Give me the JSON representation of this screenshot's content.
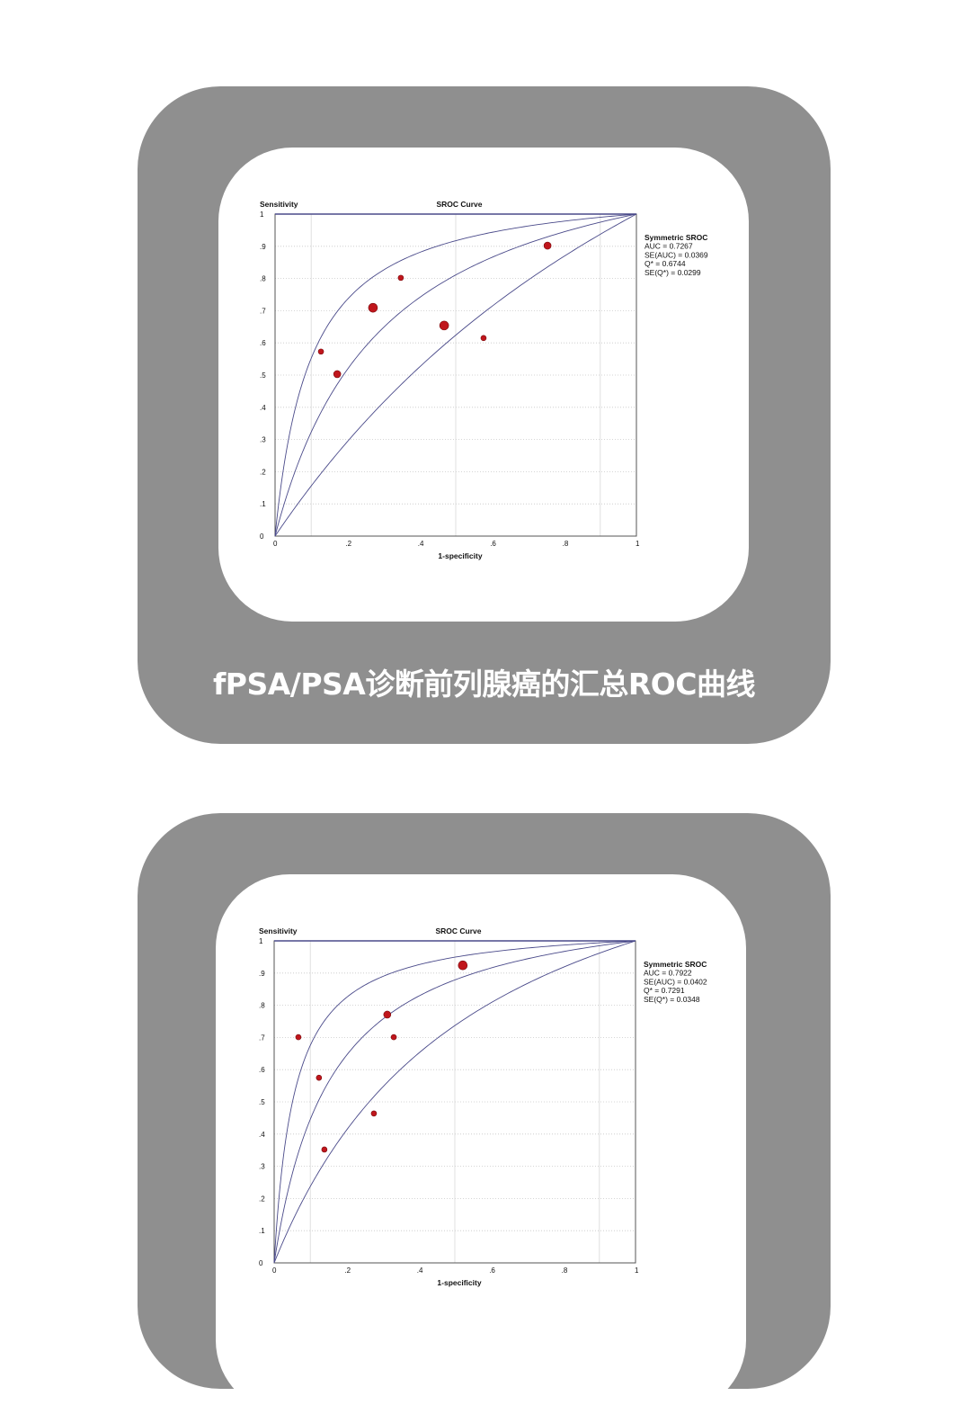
{
  "cards": [
    {
      "caption": "fPSA/PSA诊断前列腺癌的汇总ROC曲线"
    },
    {
      "caption": ""
    }
  ],
  "chart_data": [
    {
      "type": "scatter",
      "title": "SROC Curve",
      "xlabel": "1-specificity",
      "ylabel": "Sensitivity",
      "xlim": [
        0,
        1
      ],
      "ylim": [
        0,
        1
      ],
      "x_ticks": [
        "0",
        ".2",
        ".4",
        ".6",
        ".8",
        "1"
      ],
      "y_ticks": [
        "0",
        ".1",
        ".2",
        ".3",
        ".4",
        ".5",
        ".6",
        ".7",
        ".8",
        ".9",
        "1"
      ],
      "grid": true,
      "legend_placement": "right",
      "legend": {
        "title": "Symmetric SROC",
        "lines": [
          "AUC = 0.7267",
          "SE(AUC) = 0.0369",
          "Q* = 0.6744",
          "SE(Q*) = 0.0299"
        ]
      },
      "q_star": 0.6744,
      "point_color": "#c0161c",
      "curve_color": "#4a4a8a",
      "points": [
        {
          "x": 0.127,
          "y": 0.573,
          "size": "small"
        },
        {
          "x": 0.172,
          "y": 0.503,
          "size": "medium"
        },
        {
          "x": 0.271,
          "y": 0.709,
          "size": "large"
        },
        {
          "x": 0.348,
          "y": 0.802,
          "size": "small"
        },
        {
          "x": 0.468,
          "y": 0.654,
          "size": "large"
        },
        {
          "x": 0.577,
          "y": 0.615,
          "size": "small"
        },
        {
          "x": 0.754,
          "y": 0.902,
          "size": "medium"
        }
      ]
    },
    {
      "type": "scatter",
      "title": "SROC Curve",
      "xlabel": "1-specificity",
      "ylabel": "Sensitivity",
      "xlim": [
        0,
        1
      ],
      "ylim": [
        0,
        1
      ],
      "x_ticks": [
        "0",
        ".2",
        ".4",
        ".6",
        ".8",
        "1"
      ],
      "y_ticks": [
        "0",
        ".1",
        ".2",
        ".3",
        ".4",
        ".5",
        ".6",
        ".7",
        ".8",
        ".9",
        "1"
      ],
      "grid": true,
      "legend_placement": "right",
      "legend": {
        "title": "Symmetric SROC",
        "lines": [
          "AUC = 0.7922",
          "SE(AUC) = 0.0402",
          "Q* = 0.7291",
          "SE(Q*) = 0.0348"
        ]
      },
      "q_star": 0.7291,
      "point_color": "#c0161c",
      "curve_color": "#4a4a8a",
      "points": [
        {
          "x": 0.067,
          "y": 0.701,
          "size": "small"
        },
        {
          "x": 0.124,
          "y": 0.575,
          "size": "small"
        },
        {
          "x": 0.139,
          "y": 0.352,
          "size": "small"
        },
        {
          "x": 0.276,
          "y": 0.464,
          "size": "small"
        },
        {
          "x": 0.313,
          "y": 0.771,
          "size": "medium"
        },
        {
          "x": 0.331,
          "y": 0.701,
          "size": "small"
        },
        {
          "x": 0.522,
          "y": 0.924,
          "size": "large"
        }
      ]
    }
  ]
}
